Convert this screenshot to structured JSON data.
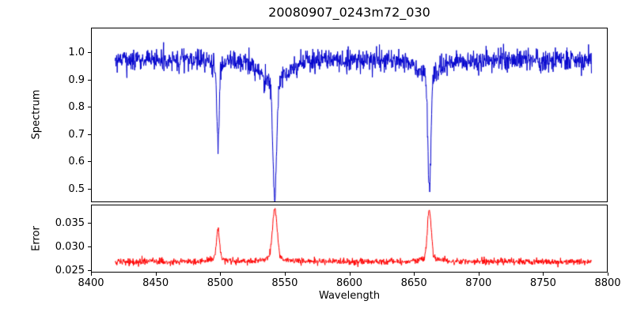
{
  "figure": {
    "background": "#ffffff",
    "title": "20080907_0243m72_030"
  },
  "chart_data": [
    {
      "type": "line",
      "series_name": "spectrum",
      "title": "20080907_0243m72_030",
      "ylabel": "Spectrum",
      "color": "#0000cd",
      "xlim": [
        8400,
        8800
      ],
      "ylim": [
        0.45,
        1.09
      ],
      "xticks": [
        8400,
        8450,
        8500,
        8550,
        8600,
        8650,
        8700,
        8750,
        8800
      ],
      "xtick_labels": [
        "8400",
        "8450",
        "8500",
        "8550",
        "8600",
        "8650",
        "8700",
        "8750",
        "8800"
      ],
      "yticks": [
        0.5,
        0.6,
        0.7,
        0.8,
        0.9,
        1.0
      ],
      "ytick_labels": [
        "0.5",
        "0.6",
        "0.7",
        "0.8",
        "0.9",
        "1.0"
      ],
      "x_start": 8418,
      "x_end": 8788,
      "n_points": 1480,
      "continuum": 0.972,
      "noise_sigma": 0.02,
      "absorption_lines": [
        {
          "center": 8498.0,
          "depth": 0.27,
          "sigma": 0.9,
          "wing_depth": 0.03,
          "wing_sigma": 4
        },
        {
          "center": 8542.1,
          "depth": 0.43,
          "sigma": 1.4,
          "wing_depth": 0.08,
          "wing_sigma": 10
        },
        {
          "center": 8662.1,
          "depth": 0.42,
          "sigma": 1.2,
          "wing_depth": 0.06,
          "wing_sigma": 8
        }
      ],
      "seed": 12345,
      "grid": false,
      "legend": "none"
    },
    {
      "type": "line",
      "series_name": "error",
      "ylabel": "Error",
      "xlabel": "Wavelength",
      "color": "#ff0000",
      "xlim": [
        8400,
        8800
      ],
      "ylim": [
        0.0245,
        0.0388
      ],
      "xticks": [
        8400,
        8450,
        8500,
        8550,
        8600,
        8650,
        8700,
        8750,
        8800
      ],
      "xtick_labels": [
        "8400",
        "8450",
        "8500",
        "8550",
        "8600",
        "8650",
        "8700",
        "8750",
        "8800"
      ],
      "yticks": [
        0.025,
        0.03,
        0.035
      ],
      "ytick_labels": [
        "0.025",
        "0.030",
        "0.035"
      ],
      "x_start": 8418,
      "x_end": 8788,
      "n_points": 1480,
      "baseline": 0.0267,
      "noise_sigma": 0.00035,
      "peaks": [
        {
          "center": 8498.0,
          "height": 0.0062,
          "sigma": 1.2
        },
        {
          "center": 8542.1,
          "height": 0.0108,
          "sigma": 1.8
        },
        {
          "center": 8662.1,
          "height": 0.0108,
          "sigma": 1.5
        }
      ],
      "seed": 999,
      "grid": false,
      "legend": "none"
    }
  ]
}
